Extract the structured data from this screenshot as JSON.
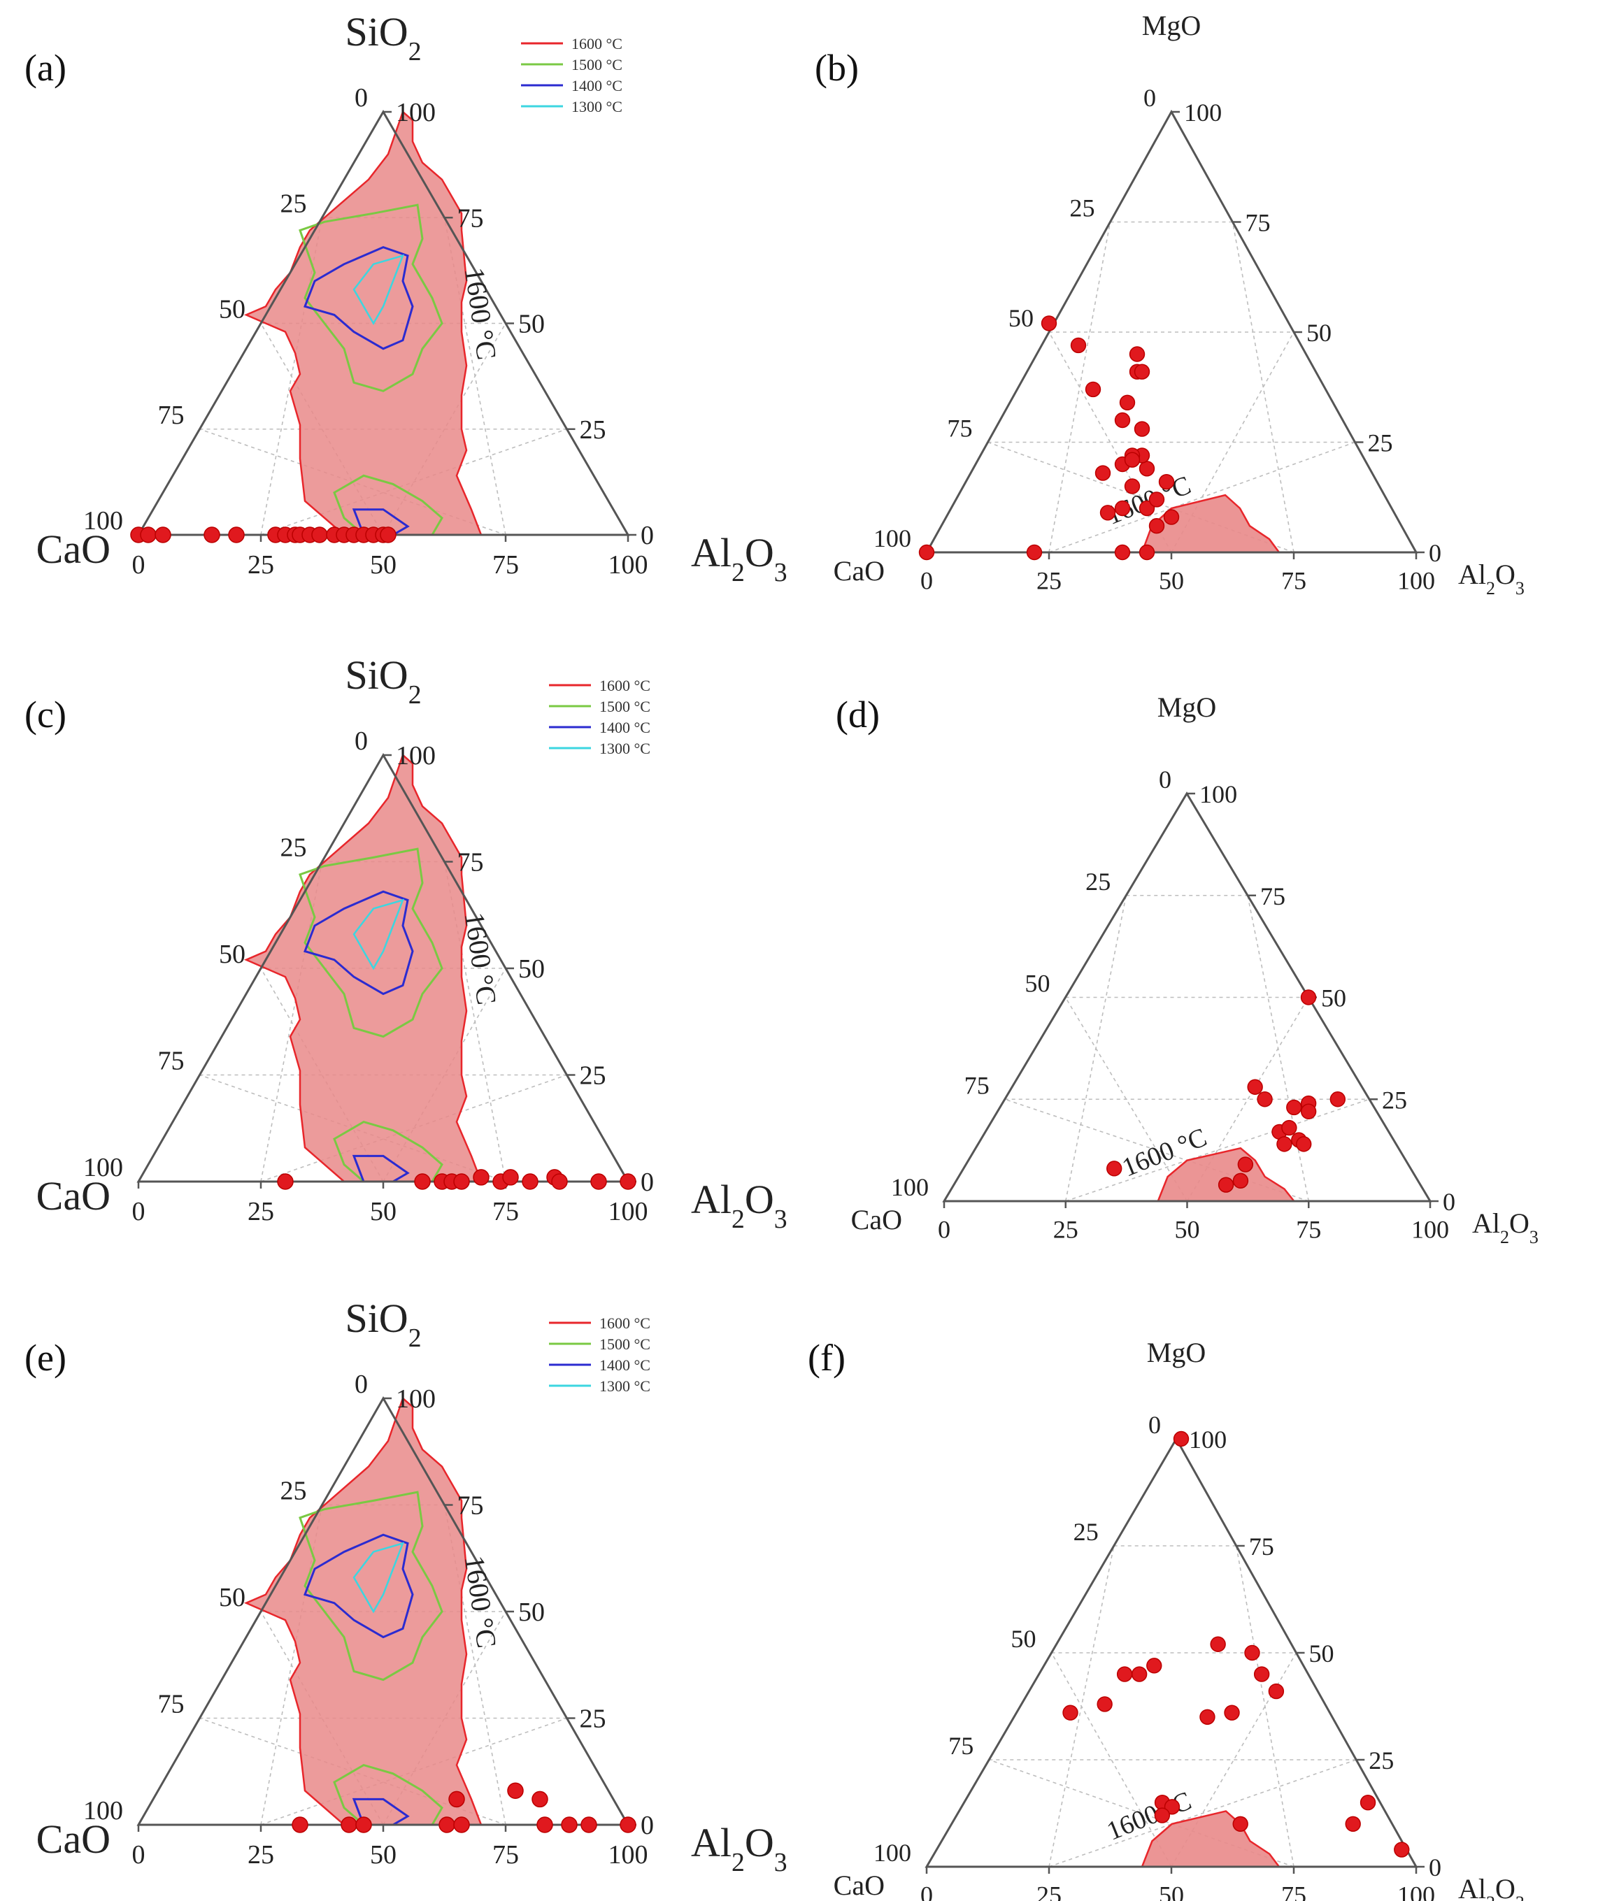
{
  "colors": {
    "isotherm_1600": "#e8262b",
    "isotherm_1500": "#7ac943",
    "isotherm_1400": "#2b2bd0",
    "isotherm_1300": "#3cd6e0",
    "liquid_region_fill": "#e98a8a",
    "point": "#e0191e"
  },
  "legend": [
    {
      "label": "1600 °C",
      "color_key": "isotherm_1600"
    },
    {
      "label": "1500 °C",
      "color_key": "isotherm_1500"
    },
    {
      "label": "1400 °C",
      "color_key": "isotherm_1400"
    },
    {
      "label": "1300 °C",
      "color_key": "isotherm_1300"
    }
  ],
  "chart_data": [
    {
      "panel": "(a)",
      "type": "scatter",
      "subtype": "ternary",
      "components": {
        "top": "SiO2",
        "left": "CaO",
        "right": "Al2O3"
      },
      "component_display": {
        "top": [
          "SiO",
          "2",
          ""
        ],
        "left": [
          "CaO",
          "",
          ""
        ],
        "right": [
          "Al",
          "2",
          "O",
          "3"
        ]
      },
      "isotherm_label": "1600 °C",
      "ticks": [
        0,
        25,
        50,
        75,
        100
      ],
      "points": [
        [
          0,
          0
        ],
        [
          2,
          0
        ],
        [
          5,
          0
        ],
        [
          15,
          0
        ],
        [
          20,
          0
        ],
        [
          28,
          0
        ],
        [
          30,
          0
        ],
        [
          32,
          0
        ],
        [
          33,
          0
        ],
        [
          35,
          0
        ],
        [
          37,
          0
        ],
        [
          40,
          0
        ],
        [
          42,
          0
        ],
        [
          44,
          0
        ],
        [
          46,
          0
        ],
        [
          48,
          0
        ],
        [
          50,
          0
        ],
        [
          51,
          0
        ]
      ]
    },
    {
      "panel": "(b)",
      "type": "scatter",
      "subtype": "ternary",
      "components": {
        "top": "MgO",
        "left": "CaO",
        "right": "Al2O3"
      },
      "component_display": {
        "top": [
          "MgO"
        ],
        "left": [
          "CaO"
        ],
        "right": [
          "Al",
          "2",
          "O",
          "3"
        ]
      },
      "isotherm_label": "1600 °C",
      "ticks": [
        0,
        25,
        50,
        75,
        100
      ],
      "points": [
        [
          47,
          6
        ],
        [
          45,
          10
        ],
        [
          47,
          12
        ],
        [
          42,
          15
        ],
        [
          40,
          20
        ],
        [
          45,
          19
        ],
        [
          34,
          37
        ],
        [
          40,
          30
        ],
        [
          25,
          52
        ],
        [
          31,
          47
        ],
        [
          43,
          45
        ],
        [
          43,
          41
        ],
        [
          44,
          41
        ],
        [
          41,
          34
        ],
        [
          44,
          28
        ],
        [
          44,
          22
        ],
        [
          36,
          18
        ],
        [
          42,
          22
        ],
        [
          42,
          21
        ],
        [
          49,
          16
        ],
        [
          37,
          9
        ],
        [
          40,
          10
        ],
        [
          50,
          8
        ],
        [
          0,
          0
        ],
        [
          22,
          0
        ],
        [
          40,
          0
        ],
        [
          45,
          0
        ]
      ]
    },
    {
      "panel": "(c)",
      "type": "scatter",
      "subtype": "ternary",
      "components": {
        "top": "SiO2",
        "left": "CaO",
        "right": "Al2O3"
      },
      "component_display": {
        "top": [
          "SiO",
          "2"
        ],
        "left": [
          "CaO"
        ],
        "right": [
          "Al",
          "2",
          "O",
          "3"
        ]
      },
      "isotherm_label": "1600 °C",
      "ticks": [
        0,
        25,
        50,
        75,
        100
      ],
      "points": [
        [
          30,
          0
        ],
        [
          58,
          0
        ],
        [
          62,
          0
        ],
        [
          64,
          0
        ],
        [
          66,
          0
        ],
        [
          70,
          1
        ],
        [
          74,
          0
        ],
        [
          76,
          1
        ],
        [
          80,
          0
        ],
        [
          85,
          1
        ],
        [
          86,
          0
        ],
        [
          94,
          0
        ],
        [
          100,
          0
        ]
      ]
    },
    {
      "panel": "(d)",
      "type": "scatter",
      "subtype": "ternary",
      "components": {
        "top": "MgO",
        "left": "CaO",
        "right": "Al2O3"
      },
      "component_display": {
        "top": [
          "MgO"
        ],
        "left": [
          "CaO"
        ],
        "right": [
          "Al",
          "2",
          "O",
          "3"
        ]
      },
      "isotherm_label": "1600 °C",
      "ticks": [
        0,
        25,
        50,
        75,
        100
      ],
      "points": [
        [
          75,
          50
        ],
        [
          64,
          28
        ],
        [
          66,
          25
        ],
        [
          72,
          23
        ],
        [
          75,
          24
        ],
        [
          81,
          25
        ],
        [
          75,
          22
        ],
        [
          69,
          17
        ],
        [
          71,
          18
        ],
        [
          70,
          14
        ],
        [
          73,
          15
        ],
        [
          74,
          14
        ],
        [
          35,
          8
        ],
        [
          62,
          9
        ],
        [
          61,
          5
        ],
        [
          58,
          4
        ]
      ]
    },
    {
      "panel": "(e)",
      "type": "scatter",
      "subtype": "ternary",
      "components": {
        "top": "SiO2",
        "left": "CaO",
        "right": "Al2O3"
      },
      "component_display": {
        "top": [
          "SiO",
          "2"
        ],
        "left": [
          "CaO"
        ],
        "right": [
          "Al",
          "2",
          "O",
          "3"
        ]
      },
      "isotherm_label": "1600 °C",
      "ticks": [
        0,
        25,
        50,
        75,
        100
      ],
      "points": [
        [
          33,
          0
        ],
        [
          43,
          0
        ],
        [
          46,
          0
        ],
        [
          63,
          0
        ],
        [
          65,
          6
        ],
        [
          66,
          0
        ],
        [
          77,
          8
        ],
        [
          82,
          6
        ],
        [
          83,
          0
        ],
        [
          88,
          0
        ],
        [
          92,
          0
        ],
        [
          100,
          0
        ]
      ]
    },
    {
      "panel": "(f)",
      "type": "scatter",
      "subtype": "ternary",
      "components": {
        "top": "MgO",
        "left": "CaO",
        "right": "Al2O3"
      },
      "component_display": {
        "top": [
          "MgO"
        ],
        "left": [
          "CaO"
        ],
        "right": [
          "Al",
          "2",
          "O",
          "3"
        ]
      },
      "isotherm_label": "1600 °C",
      "ticks": [
        0,
        25,
        50,
        75,
        100
      ],
      "points": [
        [
          51,
          100
        ],
        [
          40,
          45
        ],
        [
          46,
          47
        ],
        [
          59,
          52
        ],
        [
          66,
          50
        ],
        [
          71,
          41
        ],
        [
          68,
          45
        ],
        [
          57,
          35
        ],
        [
          62,
          36
        ],
        [
          29,
          36
        ],
        [
          43,
          45
        ],
        [
          36,
          38
        ],
        [
          48,
          15
        ],
        [
          64,
          10
        ],
        [
          87,
          10
        ],
        [
          90,
          15
        ],
        [
          97,
          4
        ],
        [
          50,
          14
        ],
        [
          48,
          12
        ]
      ]
    }
  ]
}
